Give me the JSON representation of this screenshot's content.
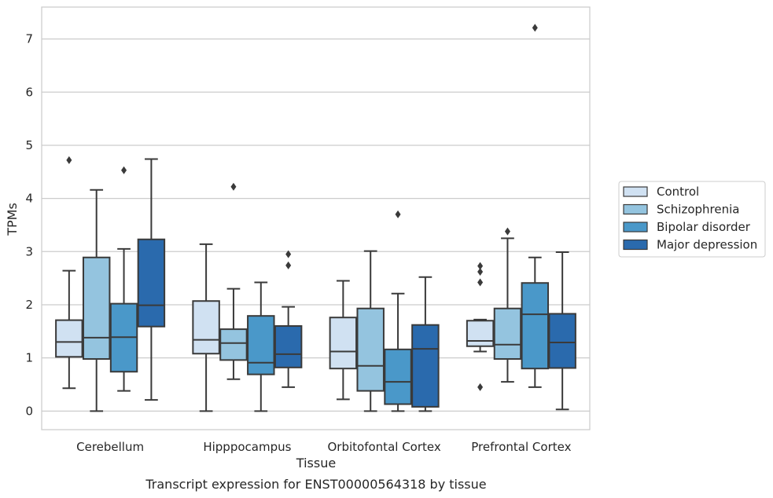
{
  "chart_data": {
    "type": "box",
    "xlabel": "Tissue",
    "ylabel": "TPMs",
    "caption": "Transcript expression for ENST00000564318 by tissue",
    "ylim": [
      -0.35,
      7.6
    ],
    "yticks": [
      "0",
      "1",
      "2",
      "3",
      "4",
      "5",
      "6",
      "7"
    ],
    "grid": "horizontal",
    "legend_position": "right",
    "categories": [
      "Cerebellum",
      "Hipppocampus",
      "Orbitofontal Cortex",
      "Prefrontal Cortex"
    ],
    "series": [
      {
        "name": "Control",
        "color": "#d0e1f2",
        "boxes": [
          {
            "whisker_low": 0.43,
            "q1": 1.02,
            "median": 1.3,
            "q3": 1.71,
            "whisker_high": 2.64,
            "outliers": [
              4.72
            ]
          },
          {
            "whisker_low": 0.0,
            "q1": 1.08,
            "median": 1.34,
            "q3": 2.07,
            "whisker_high": 3.14,
            "outliers": []
          },
          {
            "whisker_low": 0.22,
            "q1": 0.8,
            "median": 1.12,
            "q3": 1.76,
            "whisker_high": 2.45,
            "outliers": []
          },
          {
            "whisker_low": 1.12,
            "q1": 1.22,
            "median": 1.32,
            "q3": 1.7,
            "whisker_high": 1.72,
            "outliers": [
              0.45,
              2.42,
              2.62,
              2.73
            ]
          }
        ]
      },
      {
        "name": "Schizophrenia",
        "color": "#94c4df",
        "boxes": [
          {
            "whisker_low": 0.0,
            "q1": 0.98,
            "median": 1.38,
            "q3": 2.89,
            "whisker_high": 4.16,
            "outliers": []
          },
          {
            "whisker_low": 0.6,
            "q1": 0.96,
            "median": 1.28,
            "q3": 1.54,
            "whisker_high": 2.3,
            "outliers": [
              4.22
            ]
          },
          {
            "whisker_low": 0.0,
            "q1": 0.38,
            "median": 0.85,
            "q3": 1.93,
            "whisker_high": 3.01,
            "outliers": []
          },
          {
            "whisker_low": 0.55,
            "q1": 0.98,
            "median": 1.25,
            "q3": 1.93,
            "whisker_high": 3.25,
            "outliers": [
              3.38
            ]
          }
        ]
      },
      {
        "name": "Bipolar disorder",
        "color": "#4a98c9",
        "boxes": [
          {
            "whisker_low": 0.38,
            "q1": 0.74,
            "median": 1.39,
            "q3": 2.02,
            "whisker_high": 3.05,
            "outliers": [
              4.53
            ]
          },
          {
            "whisker_low": 0.0,
            "q1": 0.69,
            "median": 0.91,
            "q3": 1.79,
            "whisker_high": 2.42,
            "outliers": []
          },
          {
            "whisker_low": 0.0,
            "q1": 0.13,
            "median": 0.55,
            "q3": 1.16,
            "whisker_high": 2.21,
            "outliers": [
              3.7
            ]
          },
          {
            "whisker_low": 0.45,
            "q1": 0.8,
            "median": 1.82,
            "q3": 2.41,
            "whisker_high": 2.89,
            "outliers": [
              7.21
            ]
          }
        ]
      },
      {
        "name": "Major depression",
        "color": "#2a6aad",
        "boxes": [
          {
            "whisker_low": 0.21,
            "q1": 1.59,
            "median": 1.99,
            "q3": 3.23,
            "whisker_high": 4.74,
            "outliers": []
          },
          {
            "whisker_low": 0.45,
            "q1": 0.82,
            "median": 1.07,
            "q3": 1.6,
            "whisker_high": 1.96,
            "outliers": [
              2.74,
              2.95
            ]
          },
          {
            "whisker_low": 0.0,
            "q1": 0.08,
            "median": 1.17,
            "q3": 1.62,
            "whisker_high": 2.52,
            "outliers": []
          },
          {
            "whisker_low": 0.03,
            "q1": 0.81,
            "median": 1.29,
            "q3": 1.83,
            "whisker_high": 2.99,
            "outliers": []
          }
        ]
      }
    ]
  }
}
